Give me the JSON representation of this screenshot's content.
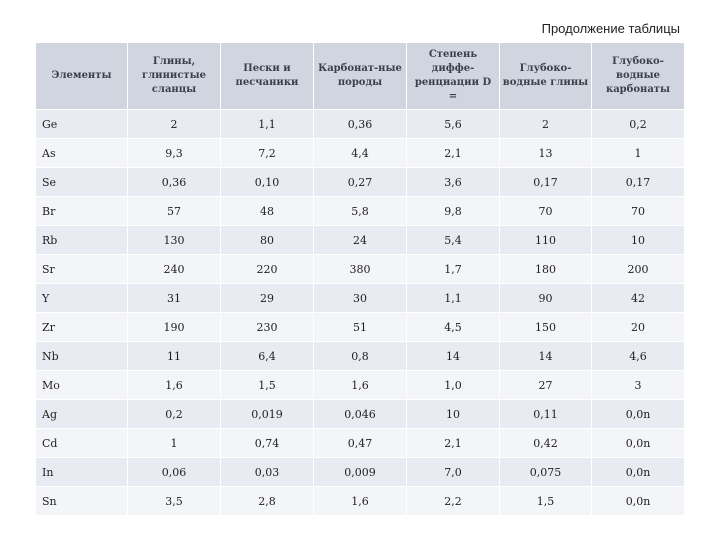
{
  "caption": "Продолжение таблицы",
  "headers": [
    "Элементы",
    "Глины, глинистые сланцы",
    "Пески и песчаники",
    "Карбонат-ные породы",
    "Степень диффе-ренциации D =",
    "Глубоко-водные глины",
    "Глубоко-водные карбонаты"
  ],
  "rows": [
    [
      "Ge",
      "2",
      "1,1",
      "0,36",
      "5,6",
      "2",
      "0,2"
    ],
    [
      "As",
      "9,3",
      "7,2",
      "4,4",
      "2,1",
      "13",
      "1"
    ],
    [
      "Se",
      "0,36",
      "0,10",
      "0,27",
      "3,6",
      "0,17",
      "0,17"
    ],
    [
      "Br",
      "57",
      "48",
      "5,8",
      "9,8",
      "70",
      "70"
    ],
    [
      "Rb",
      "130",
      "80",
      "24",
      "5,4",
      "110",
      "10"
    ],
    [
      "Sr",
      "240",
      "220",
      "380",
      "1,7",
      "180",
      "200"
    ],
    [
      "Y",
      "31",
      "29",
      "30",
      "1,1",
      "90",
      "42"
    ],
    [
      "Zr",
      "190",
      "230",
      "51",
      "4,5",
      "150",
      "20"
    ],
    [
      "Nb",
      "11",
      "6,4",
      "0,8",
      "14",
      "14",
      "4,6"
    ],
    [
      "Mo",
      "1,6",
      "1,5",
      "1,6",
      "1,0",
      "27",
      "3"
    ],
    [
      "Ag",
      "0,2",
      "0,019",
      "0,046",
      "10",
      "0,11",
      "0,0n"
    ],
    [
      "Cd",
      "1",
      "0,74",
      "0,47",
      "2,1",
      "0,42",
      "0,0n"
    ],
    [
      "In",
      "0,06",
      "0,03",
      "0,009",
      "7,0",
      "0,075",
      "0,0n"
    ],
    [
      "Sn",
      "3,5",
      "2,8",
      "1,6",
      "2,2",
      "1,5",
      "0,0n"
    ]
  ]
}
